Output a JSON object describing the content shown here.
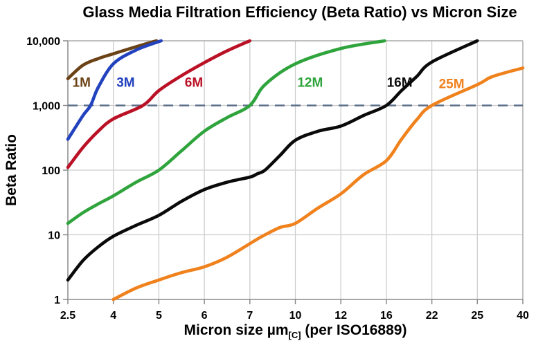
{
  "title": "Glass Media Filtration Efficiency (Beta Ratio) vs Micron Size",
  "axes": {
    "x_label_prefix": "Micron size µm",
    "x_label_sub": "[C]",
    "x_label_suffix": " (per ISO16889)",
    "y_label": "Beta Ratio",
    "x_tick_labels": [
      "2.5",
      "4",
      "5",
      "6",
      "7",
      "10",
      "12",
      "16",
      "22",
      "25",
      "40"
    ],
    "y_tick_labels": [
      "10,000",
      "1,000",
      "100",
      "10",
      "1"
    ]
  },
  "chart_data": {
    "type": "line",
    "title": "Glass Media Filtration Efficiency (Beta Ratio) vs Micron Size",
    "xlabel": "Micron size µm[C] (per ISO16889)",
    "ylabel": "Beta Ratio",
    "x_scale": "categorical-even-spacing",
    "x_ticks": [
      2.5,
      4,
      5,
      6,
      7,
      10,
      12,
      16,
      22,
      25,
      40
    ],
    "y_scale": "log10",
    "ylim": [
      1,
      10000
    ],
    "y_ticks": [
      1,
      10,
      100,
      1000,
      10000
    ],
    "grid": true,
    "reference_line": {
      "beta": 1000,
      "style": "dashed",
      "color": "#5B6E8A"
    },
    "series": [
      {
        "name": "1M",
        "color": "#6B4216",
        "label_anchor": {
          "micron": 2.95,
          "beta": 2300
        },
        "points": [
          [
            2.5,
            2600
          ],
          [
            3,
            4200
          ],
          [
            3.5,
            5300
          ],
          [
            4,
            6300
          ],
          [
            4.5,
            8100
          ],
          [
            4.95,
            10000
          ]
        ]
      },
      {
        "name": "3M",
        "color": "#2342BE",
        "label_anchor": {
          "micron": 4.27,
          "beta": 2300
        },
        "points": [
          [
            2.5,
            300
          ],
          [
            3,
            700
          ],
          [
            3.25,
            1000
          ],
          [
            3.5,
            1900
          ],
          [
            4,
            4400
          ],
          [
            4.5,
            7200
          ],
          [
            5.05,
            10000
          ]
        ]
      },
      {
        "name": "6M",
        "color": "#BB1126",
        "label_anchor": {
          "micron": 5.77,
          "beta": 2300
        },
        "points": [
          [
            2.5,
            110
          ],
          [
            3,
            225
          ],
          [
            3.5,
            400
          ],
          [
            4,
            620
          ],
          [
            4.65,
            1000
          ],
          [
            5,
            1700
          ],
          [
            5.5,
            2900
          ],
          [
            6,
            4600
          ],
          [
            6.5,
            7000
          ],
          [
            7,
            10000
          ]
        ]
      },
      {
        "name": "12M",
        "color": "#2FA43C",
        "label_anchor": {
          "micron": 10.65,
          "beta": 2300
        },
        "points": [
          [
            2.5,
            15
          ],
          [
            3,
            22
          ],
          [
            3.5,
            30
          ],
          [
            4,
            40
          ],
          [
            4.5,
            65
          ],
          [
            5,
            100
          ],
          [
            5.5,
            200
          ],
          [
            6,
            400
          ],
          [
            6.5,
            650
          ],
          [
            7,
            1000
          ],
          [
            8,
            2100
          ],
          [
            10,
            4400
          ],
          [
            12,
            7600
          ],
          [
            15.85,
            10000
          ]
        ]
      },
      {
        "name": "16M",
        "color": "#0A0A0A",
        "label_anchor": {
          "micron": 17.75,
          "beta": 2300
        },
        "points": [
          [
            2.5,
            2
          ],
          [
            3,
            4
          ],
          [
            3.5,
            6.5
          ],
          [
            4,
            9.5
          ],
          [
            4.5,
            14
          ],
          [
            5,
            20
          ],
          [
            5.5,
            33
          ],
          [
            6,
            50
          ],
          [
            6.5,
            65
          ],
          [
            7,
            78
          ],
          [
            7.5,
            88
          ],
          [
            8,
            100
          ],
          [
            9,
            170
          ],
          [
            10,
            290
          ],
          [
            11,
            400
          ],
          [
            12,
            480
          ],
          [
            14,
            700
          ],
          [
            16,
            1000
          ],
          [
            18,
            1700
          ],
          [
            20,
            2800
          ],
          [
            22,
            4700
          ],
          [
            25,
            10000
          ]
        ]
      },
      {
        "name": "25M",
        "color": "#F0821E",
        "label_anchor": {
          "micron": 23.3,
          "beta": 2200
        },
        "points": [
          [
            4,
            1
          ],
          [
            4.5,
            1.5
          ],
          [
            5,
            2
          ],
          [
            5.5,
            2.6
          ],
          [
            6,
            3.2
          ],
          [
            6.5,
            4.5
          ],
          [
            7,
            7.3
          ],
          [
            7.5,
            8.6
          ],
          [
            8,
            10
          ],
          [
            9,
            13
          ],
          [
            10,
            15
          ],
          [
            11,
            26
          ],
          [
            12,
            43
          ],
          [
            14,
            85
          ],
          [
            16,
            140
          ],
          [
            18,
            300
          ],
          [
            20,
            600
          ],
          [
            22,
            1000
          ],
          [
            25,
            2100
          ],
          [
            30,
            2800
          ],
          [
            40,
            3800
          ]
        ]
      }
    ]
  },
  "style": {
    "grid_color": "#CDCDCD",
    "axis_color": "#8A8A8A",
    "border_color": "#ABABAB",
    "text_color": "#000000",
    "background": "#FFFFFF"
  }
}
